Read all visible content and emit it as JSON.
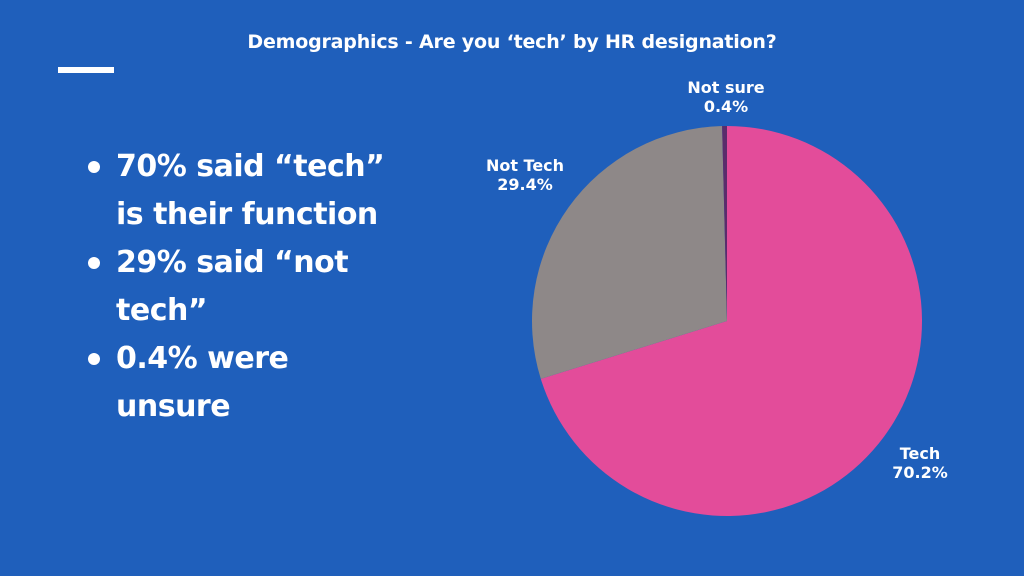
{
  "slide": {
    "title": "Demographics -  Are you ‘tech’ by HR designation?",
    "background_color": "#1f5fbb"
  },
  "bullets": [
    {
      "text": "70% said “tech” is their function"
    },
    {
      "text": "29% said “not tech”"
    },
    {
      "text": "0.4% were unsure"
    }
  ],
  "chart_data": {
    "type": "pie",
    "title": "Demographics - Are you ‘tech’ by HR designation?",
    "categories": [
      "Tech",
      "Not Tech",
      "Not sure"
    ],
    "values": [
      70.2,
      29.4,
      0.4
    ],
    "labels": [
      "70.2%",
      "29.4%",
      "0.4%"
    ],
    "colors": [
      "#e34c9a",
      "#8e8888",
      "#5a2c6b"
    ],
    "start_angle_deg": 0,
    "direction": "clockwise",
    "legend": "none (direct labels)",
    "slice_labels": [
      {
        "name": "Tech",
        "value": "70.2%"
      },
      {
        "name": "Not Tech",
        "value": "29.4%"
      },
      {
        "name": "Not sure",
        "value": "0.4%"
      }
    ]
  }
}
